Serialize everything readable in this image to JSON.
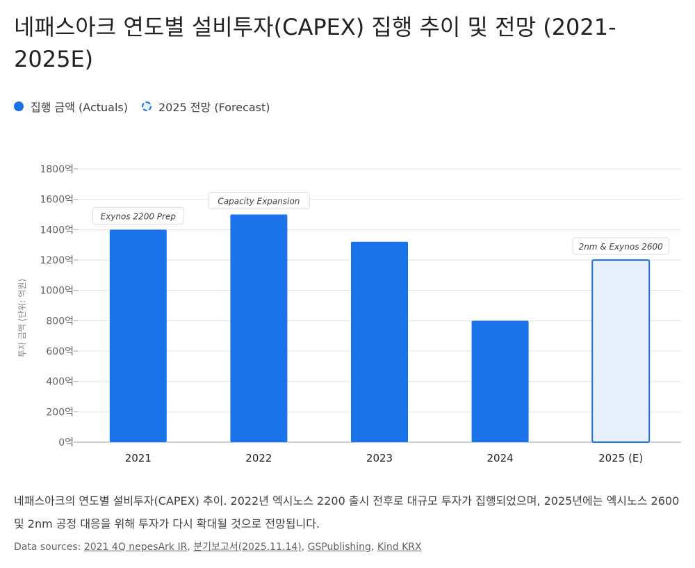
{
  "title": "네패스아크 연도별 설비투자(CAPEX) 집행 추이 및 전망 (2021-2025E)",
  "legend": {
    "actuals": "집행 금액 (Actuals)",
    "forecast": "2025 전망 (Forecast)"
  },
  "chart_data": {
    "type": "bar",
    "categories": [
      "2021",
      "2022",
      "2023",
      "2024",
      "2025 (E)"
    ],
    "series": [
      {
        "name": "집행 금액 (Actuals)",
        "values": [
          1400,
          1500,
          1320,
          800,
          null
        ]
      },
      {
        "name": "2025 전망 (Forecast)",
        "values": [
          null,
          null,
          null,
          null,
          1200
        ]
      }
    ],
    "ylabel": "투자 금액 (단위: 억원)",
    "ylim": [
      0,
      1800
    ],
    "yticks": [
      0,
      200,
      400,
      600,
      800,
      1000,
      1200,
      1400,
      1600,
      1800
    ],
    "ytick_suffix": "억",
    "grid": true,
    "legend_position": "top-left",
    "annotations": [
      {
        "category": "2021",
        "text": "Exynos 2200 Prep"
      },
      {
        "category": "2022",
        "text": "Capacity Expansion"
      },
      {
        "category": "2025 (E)",
        "text": "2nm & Exynos 2600"
      }
    ],
    "colors": {
      "actual": "#1a73e8",
      "forecast_fill": "#e8f0fe",
      "forecast_stroke": "#1a73e8"
    }
  },
  "description": "네패스아크의 연도별 설비투자(CAPEX) 추이. 2022년 엑시노스 2200 출시 전후로 대규모 투자가 집행되었으며, 2025년에는 엑시노스 2600 및 2nm 공정 대응을 위해 투자가 다시 확대될 것으로 전망됩니다.",
  "sources": {
    "label": "Data sources: ",
    "links": [
      "2021 4Q nepesArk IR",
      "분기보고서(2025.11.14)",
      "GSPublishing",
      "Kind KRX"
    ]
  }
}
